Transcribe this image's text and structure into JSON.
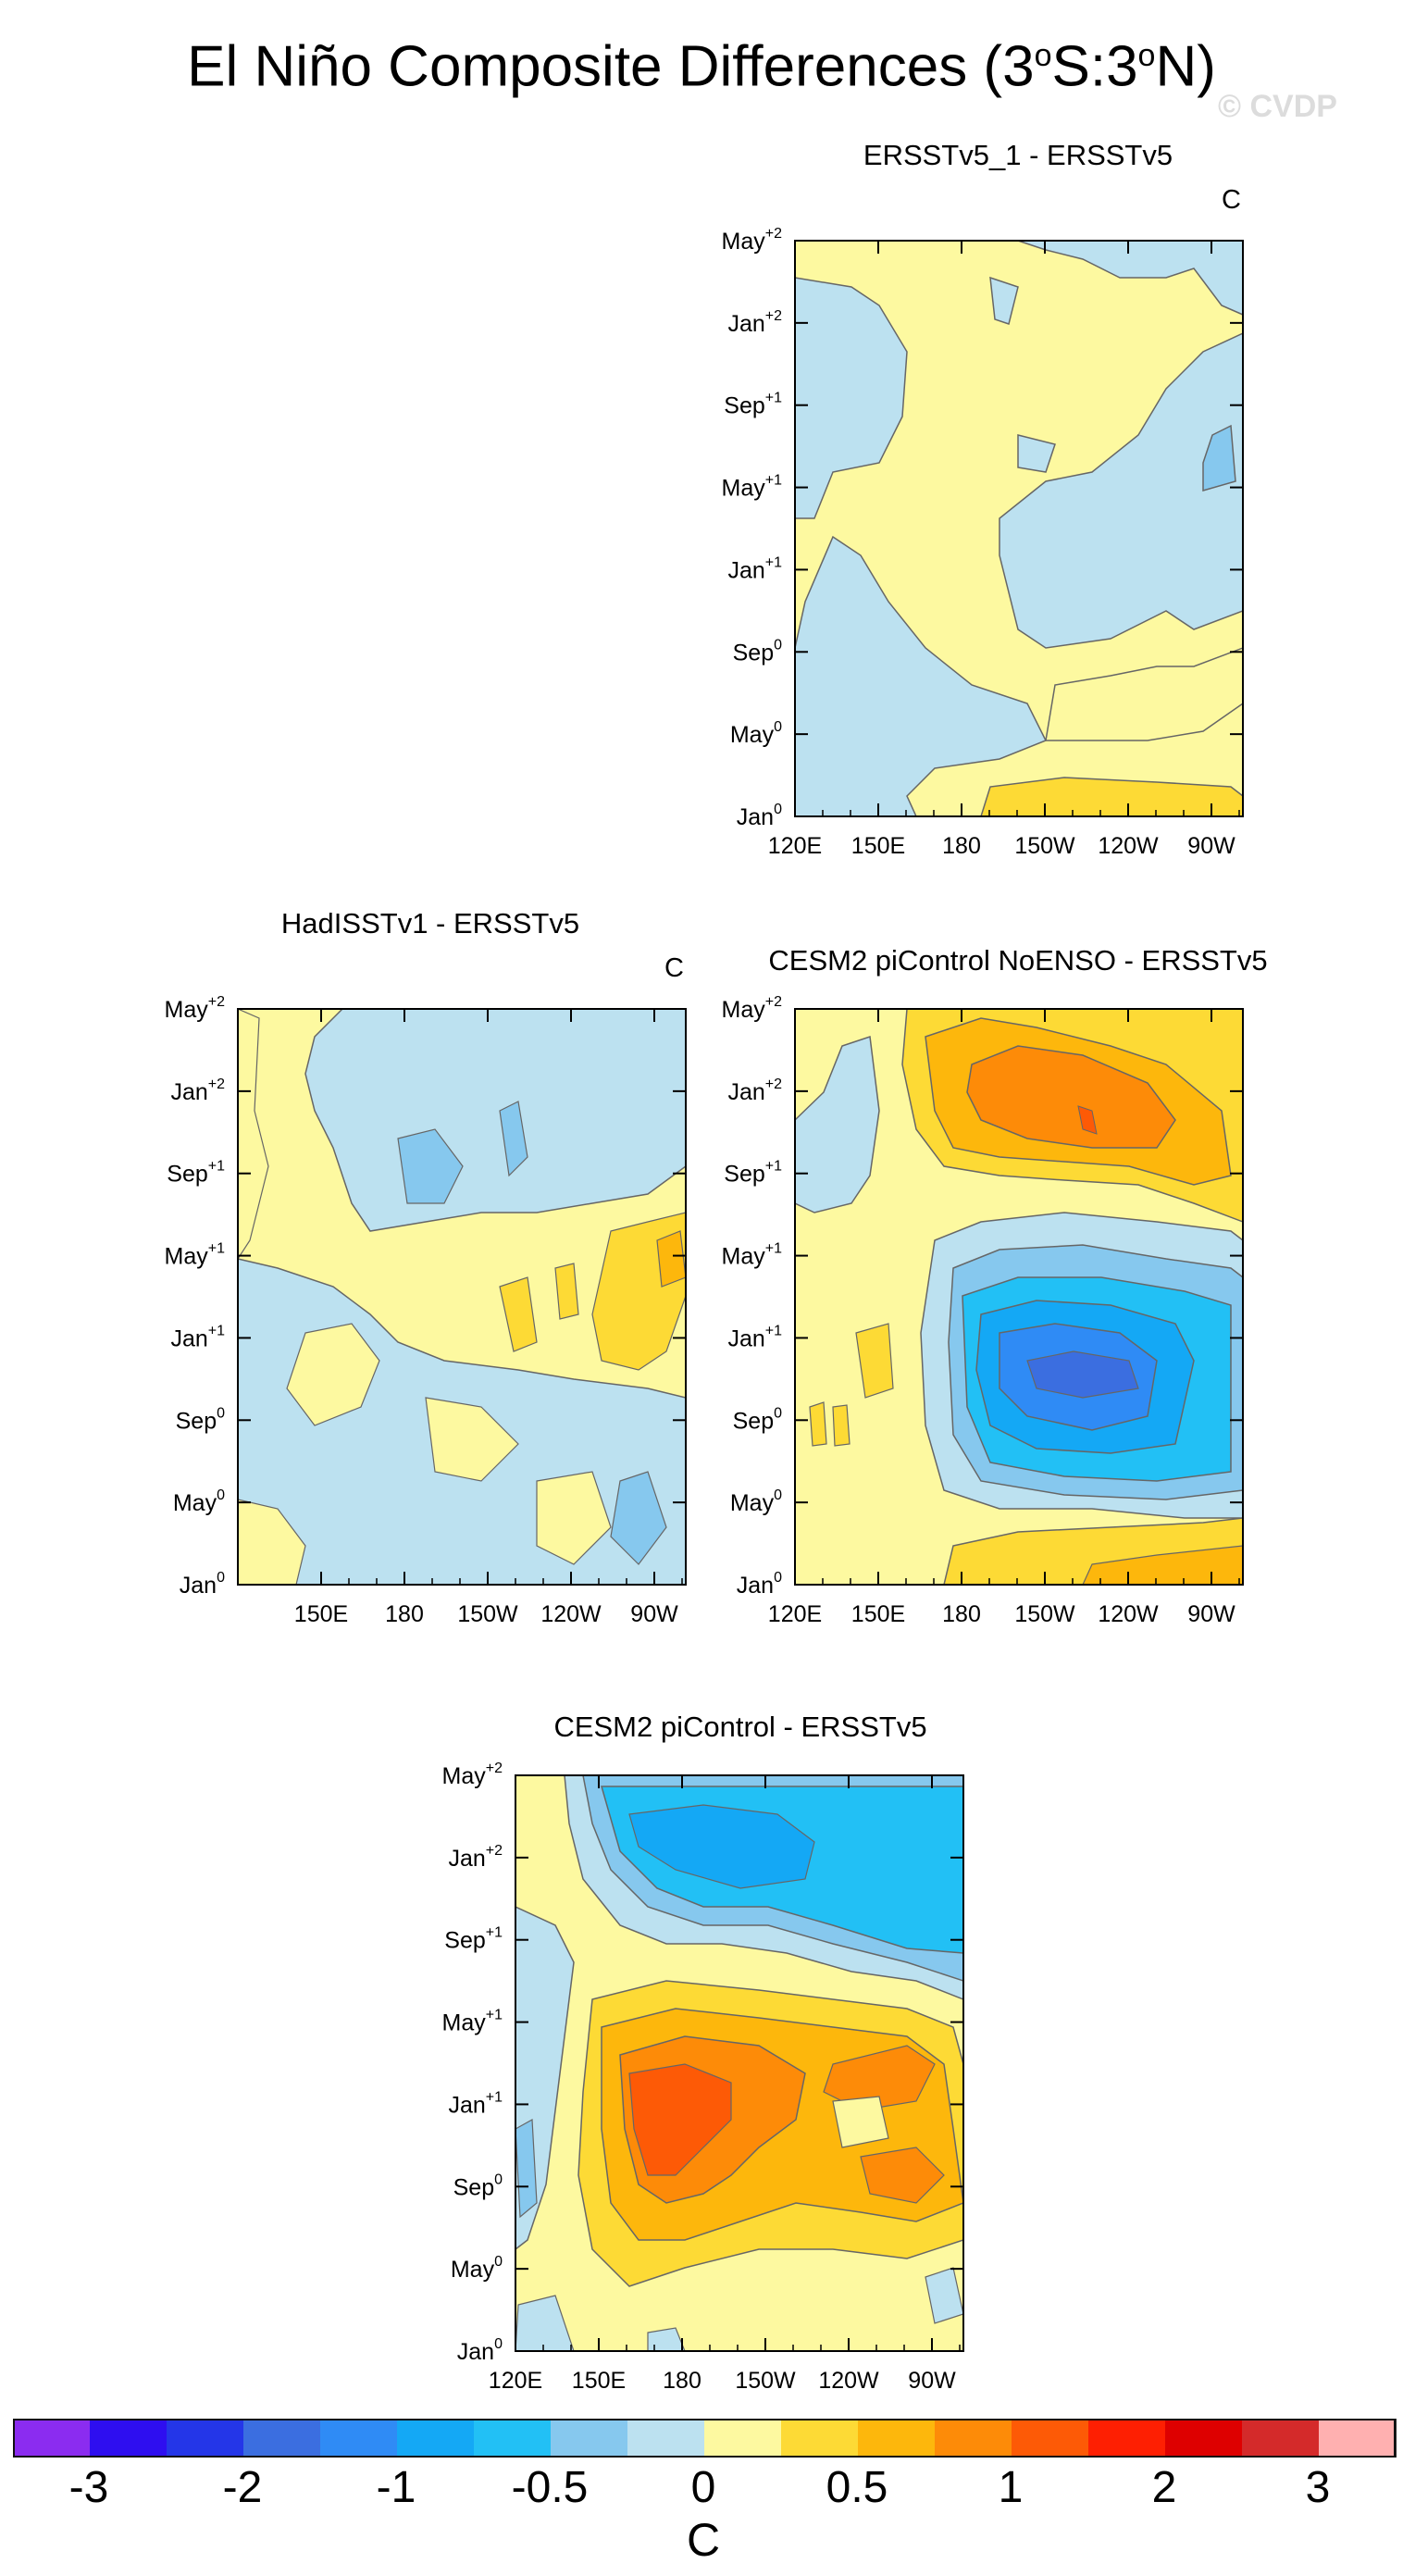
{
  "title": "El Niño Composite Differences (3°S:3°N)",
  "title_parts": {
    "pre": "El Niño Composite Differences (3",
    "sup1": "o",
    "mid": "S:3",
    "sup2": "o",
    "post": "N)"
  },
  "watermark": "© CVDP",
  "colors": {
    "levels": [
      "#8B2CF0",
      "#2E0EF0",
      "#2436E8",
      "#3B6EE0",
      "#2F8BF5",
      "#14A8F5",
      "#22C0F5",
      "#86C8EE",
      "#BCE1F0",
      "#FDF9A0",
      "#FDDA35",
      "#FDB70C",
      "#FD8B08",
      "#FD5A06",
      "#FE1F02",
      "#DE0000",
      "#D42A2A",
      "#FFB0B0"
    ]
  },
  "colorbar": {
    "labels": [
      "-3",
      "-2",
      "-1",
      "-0.5",
      "0",
      "0.5",
      "1",
      "2",
      "3"
    ],
    "unit": "C"
  },
  "chart_data": [
    {
      "type": "heatmap",
      "title": "ERSSTv5_1 - ERSSTv5",
      "unit": "C",
      "xticks": [
        "120E",
        "150E",
        "180",
        "150W",
        "120W",
        "90W"
      ],
      "yticks": [
        {
          "base": "Jan",
          "sup": "0"
        },
        {
          "base": "May",
          "sup": "0"
        },
        {
          "base": "Sep",
          "sup": "0"
        },
        {
          "base": "Jan",
          "sup": "+1"
        },
        {
          "base": "May",
          "sup": "+1"
        },
        {
          "base": "Sep",
          "sup": "+1"
        },
        {
          "base": "Jan",
          "sup": "+2"
        },
        {
          "base": "May",
          "sup": "+2"
        }
      ],
      "xrange": [
        "120E",
        "80W"
      ],
      "values_range": [
        -0.5,
        0.5
      ]
    },
    {
      "type": "heatmap",
      "title": "HadISSTv1 - ERSSTv5",
      "unit": "C",
      "xticks": [
        "150E",
        "180",
        "150W",
        "120W",
        "90W"
      ],
      "yticks": [
        {
          "base": "Jan",
          "sup": "0"
        },
        {
          "base": "May",
          "sup": "0"
        },
        {
          "base": "Sep",
          "sup": "0"
        },
        {
          "base": "Jan",
          "sup": "+1"
        },
        {
          "base": "May",
          "sup": "+1"
        },
        {
          "base": "Sep",
          "sup": "+1"
        },
        {
          "base": "Jan",
          "sup": "+2"
        },
        {
          "base": "May",
          "sup": "+2"
        }
      ],
      "values_range": [
        -0.5,
        0.75
      ]
    },
    {
      "type": "heatmap",
      "title": "CESM2 piControl NoENSO - ERSSTv5",
      "unit": "",
      "xticks": [
        "120E",
        "150E",
        "180",
        "150W",
        "120W",
        "90W"
      ],
      "yticks": [
        {
          "base": "Jan",
          "sup": "0"
        },
        {
          "base": "May",
          "sup": "0"
        },
        {
          "base": "Sep",
          "sup": "0"
        },
        {
          "base": "Jan",
          "sup": "+1"
        },
        {
          "base": "May",
          "sup": "+1"
        },
        {
          "base": "Sep",
          "sup": "+1"
        },
        {
          "base": "Jan",
          "sup": "+2"
        },
        {
          "base": "May",
          "sup": "+2"
        }
      ],
      "values_range": [
        -2,
        1.5
      ]
    },
    {
      "type": "heatmap",
      "title": "CESM2 piControl - ERSSTv5",
      "unit": "",
      "xticks": [
        "120E",
        "150E",
        "180",
        "150W",
        "120W",
        "90W"
      ],
      "yticks": [
        {
          "base": "Jan",
          "sup": "0"
        },
        {
          "base": "May",
          "sup": "0"
        },
        {
          "base": "Sep",
          "sup": "0"
        },
        {
          "base": "Jan",
          "sup": "+1"
        },
        {
          "base": "May",
          "sup": "+1"
        },
        {
          "base": "Sep",
          "sup": "+1"
        },
        {
          "base": "Jan",
          "sup": "+2"
        },
        {
          "base": "May",
          "sup": "+2"
        }
      ],
      "values_range": [
        -1,
        1.5
      ]
    }
  ]
}
